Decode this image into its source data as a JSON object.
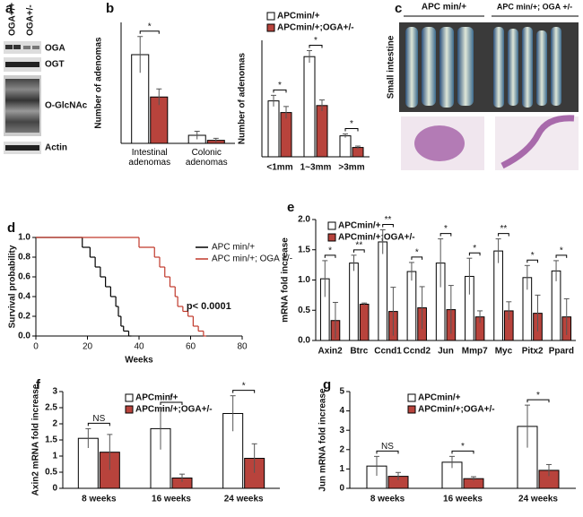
{
  "panel_labels": [
    "a",
    "b",
    "c",
    "d",
    "e",
    "f",
    "g"
  ],
  "blot": {
    "genotypes": [
      "OGA+/+",
      "OGA+/-"
    ],
    "bands": [
      "OGA",
      "OGT",
      "O-GlcNAc",
      "Actin"
    ]
  },
  "histology": {
    "groups": [
      "APC min/+",
      "APC min/+; OGA +/-"
    ],
    "tissue": "Small intestine"
  },
  "chart_data": [
    {
      "type": "bar",
      "y_label": "Number of adenomas",
      "categories": [
        "Intestinal adenomas",
        "Colonic adenomas"
      ],
      "series": [
        {
          "color": "#ffffff",
          "values": [
            44,
            4
          ],
          "errors": [
            9,
            2
          ]
        },
        {
          "color": "#b8433c",
          "values": [
            23,
            1.5
          ],
          "errors": [
            4,
            1
          ]
        }
      ],
      "significance": [
        "*"
      ],
      "ylim": [
        0,
        60
      ]
    },
    {
      "type": "bar",
      "y_label": "Number of adenomas",
      "legend": "top",
      "categories": [
        "<1mm",
        "1~3mm",
        ">3mm"
      ],
      "series": [
        {
          "name": "APCmin/+",
          "color": "#ffffff",
          "values": [
            12,
            21.5,
            4.5
          ],
          "errors": [
            1.2,
            1.3,
            0.4
          ]
        },
        {
          "name": "APCmin/+;OGA+/-",
          "color": "#b8433c",
          "values": [
            9.5,
            11,
            2
          ],
          "errors": [
            1.3,
            1.2,
            0.3
          ]
        }
      ],
      "significance": [
        "*",
        "*",
        "*"
      ],
      "ylim": [
        0,
        25
      ]
    },
    {
      "type": "line",
      "step": true,
      "x_label": "Weeks",
      "y_label": "Survival probability",
      "annotation": "p< 0.0001",
      "legend": "top-right",
      "series": [
        {
          "name": "APC min/+",
          "color": "#000000",
          "x": [
            0,
            18,
            21,
            23,
            25,
            27,
            29,
            31,
            32,
            33,
            34,
            36
          ],
          "values": [
            1,
            0.9,
            0.8,
            0.7,
            0.6,
            0.5,
            0.4,
            0.3,
            0.2,
            0.1,
            0.05,
            0
          ]
        },
        {
          "name": "APC min/+; OGA +/-",
          "color": "#c0392b",
          "x": [
            0,
            40,
            46,
            48,
            50,
            52,
            54,
            55,
            57,
            59,
            61,
            63,
            65
          ],
          "values": [
            1,
            0.9,
            0.8,
            0.7,
            0.6,
            0.5,
            0.4,
            0.3,
            0.25,
            0.2,
            0.1,
            0.05,
            0
          ]
        }
      ],
      "xlim": [
        0,
        80
      ],
      "xticks": [
        0,
        20,
        40,
        60,
        80
      ],
      "ylim": [
        0,
        1
      ],
      "yticks": [
        {
          "value": 0,
          "label": "0.0"
        },
        {
          "value": 0.2,
          "label": "0.2"
        },
        {
          "value": 0.4,
          "label": "0.4"
        },
        {
          "value": 0.6,
          "label": "0.6"
        },
        {
          "value": 0.8,
          "label": "0.8"
        },
        {
          "value": 1,
          "label": "1.0"
        }
      ]
    },
    {
      "type": "bar",
      "y_label": "mRNA fold increase",
      "legend": "top-left",
      "categories": [
        "Axin2",
        "Btrc",
        "Ccnd1",
        "Ccnd2",
        "Jun",
        "Mmp7",
        "Myc",
        "Pitx2",
        "Ppard"
      ],
      "series": [
        {
          "name": "APCmin/+",
          "color": "#ffffff",
          "values": [
            1.02,
            1.28,
            1.63,
            1.14,
            1.28,
            1.06,
            1.48,
            1.04,
            1.15
          ],
          "errors": [
            0.3,
            0.13,
            0.2,
            0.15,
            0.4,
            0.3,
            0.2,
            0.2,
            0.17
          ]
        },
        {
          "name": "APCmin/+;OGA+/-",
          "color": "#b8433c",
          "values": [
            0.33,
            0.6,
            0.48,
            0.54,
            0.51,
            0.39,
            0.49,
            0.45,
            0.39
          ],
          "errors": [
            0.3,
            0.02,
            0.4,
            0.35,
            0.4,
            0.1,
            0.15,
            0.3,
            0.3
          ]
        }
      ],
      "significance": [
        "*",
        "**",
        "**",
        "*",
        "*",
        "*",
        "**",
        "*",
        "*"
      ],
      "ylim": [
        0,
        2
      ],
      "yticks": [
        {
          "value": 0,
          "label": "0.0"
        },
        {
          "value": 0.5,
          "label": "0.5"
        },
        {
          "value": 1,
          "label": "1.0"
        },
        {
          "value": 1.5,
          "label": "1.5"
        },
        {
          "value": 2,
          "label": "2.0"
        }
      ]
    },
    {
      "type": "bar",
      "y_label": "Axin2 mRNA fold increase",
      "legend": "top-left",
      "categories": [
        "8 weeks",
        "16 weeks",
        "24 weeks"
      ],
      "series": [
        {
          "name": "APCmin/+",
          "color": "#ffffff",
          "values": [
            1.55,
            1.85,
            2.32
          ],
          "errors": [
            0.3,
            0.65,
            0.55
          ]
        },
        {
          "name": "APCmin/+;OGA+/-",
          "color": "#b8433c",
          "values": [
            1.12,
            0.32,
            0.93
          ],
          "errors": [
            0.55,
            0.12,
            0.45
          ]
        }
      ],
      "significance": [
        "NS",
        "*",
        "*"
      ],
      "ylim": [
        0,
        3
      ],
      "yticks": [
        0,
        0.5,
        1,
        1.5,
        2,
        2.5,
        3
      ]
    },
    {
      "type": "bar",
      "y_label": "Jun mRNA fold increase",
      "legend": "top-left",
      "categories": [
        "8 weeks",
        "16 weeks",
        "24 weeks"
      ],
      "series": [
        {
          "name": "APCmin/+",
          "color": "#ffffff",
          "values": [
            1.15,
            1.35,
            3.2
          ],
          "errors": [
            0.5,
            0.3,
            1.1
          ]
        },
        {
          "name": "APCmin/+;OGA+/-",
          "color": "#b8433c",
          "values": [
            0.62,
            0.5,
            0.93
          ],
          "errors": [
            0.2,
            0.1,
            0.3
          ]
        }
      ],
      "significance": [
        "NS",
        "*",
        "*"
      ],
      "ylim": [
        0,
        5
      ],
      "yticks": [
        0,
        1,
        2,
        3,
        4,
        5
      ]
    }
  ]
}
